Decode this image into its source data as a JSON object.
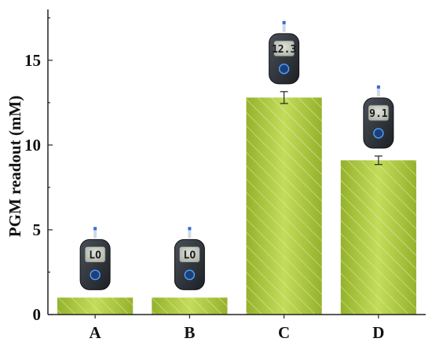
{
  "chart_data": {
    "type": "bar",
    "ylabel": "PGM readout (mM)",
    "categories": [
      "A",
      "B",
      "C",
      "D"
    ],
    "values": [
      1.0,
      1.0,
      12.8,
      9.1
    ],
    "errors": [
      0,
      0,
      0.35,
      0.25
    ],
    "ylim": [
      0,
      18
    ],
    "yticks": [
      0,
      5,
      10,
      15
    ],
    "grid": false,
    "bar_color": "#a8c43c",
    "meter_readings": [
      "LO",
      "LO",
      "12.3",
      "9.1"
    ]
  }
}
